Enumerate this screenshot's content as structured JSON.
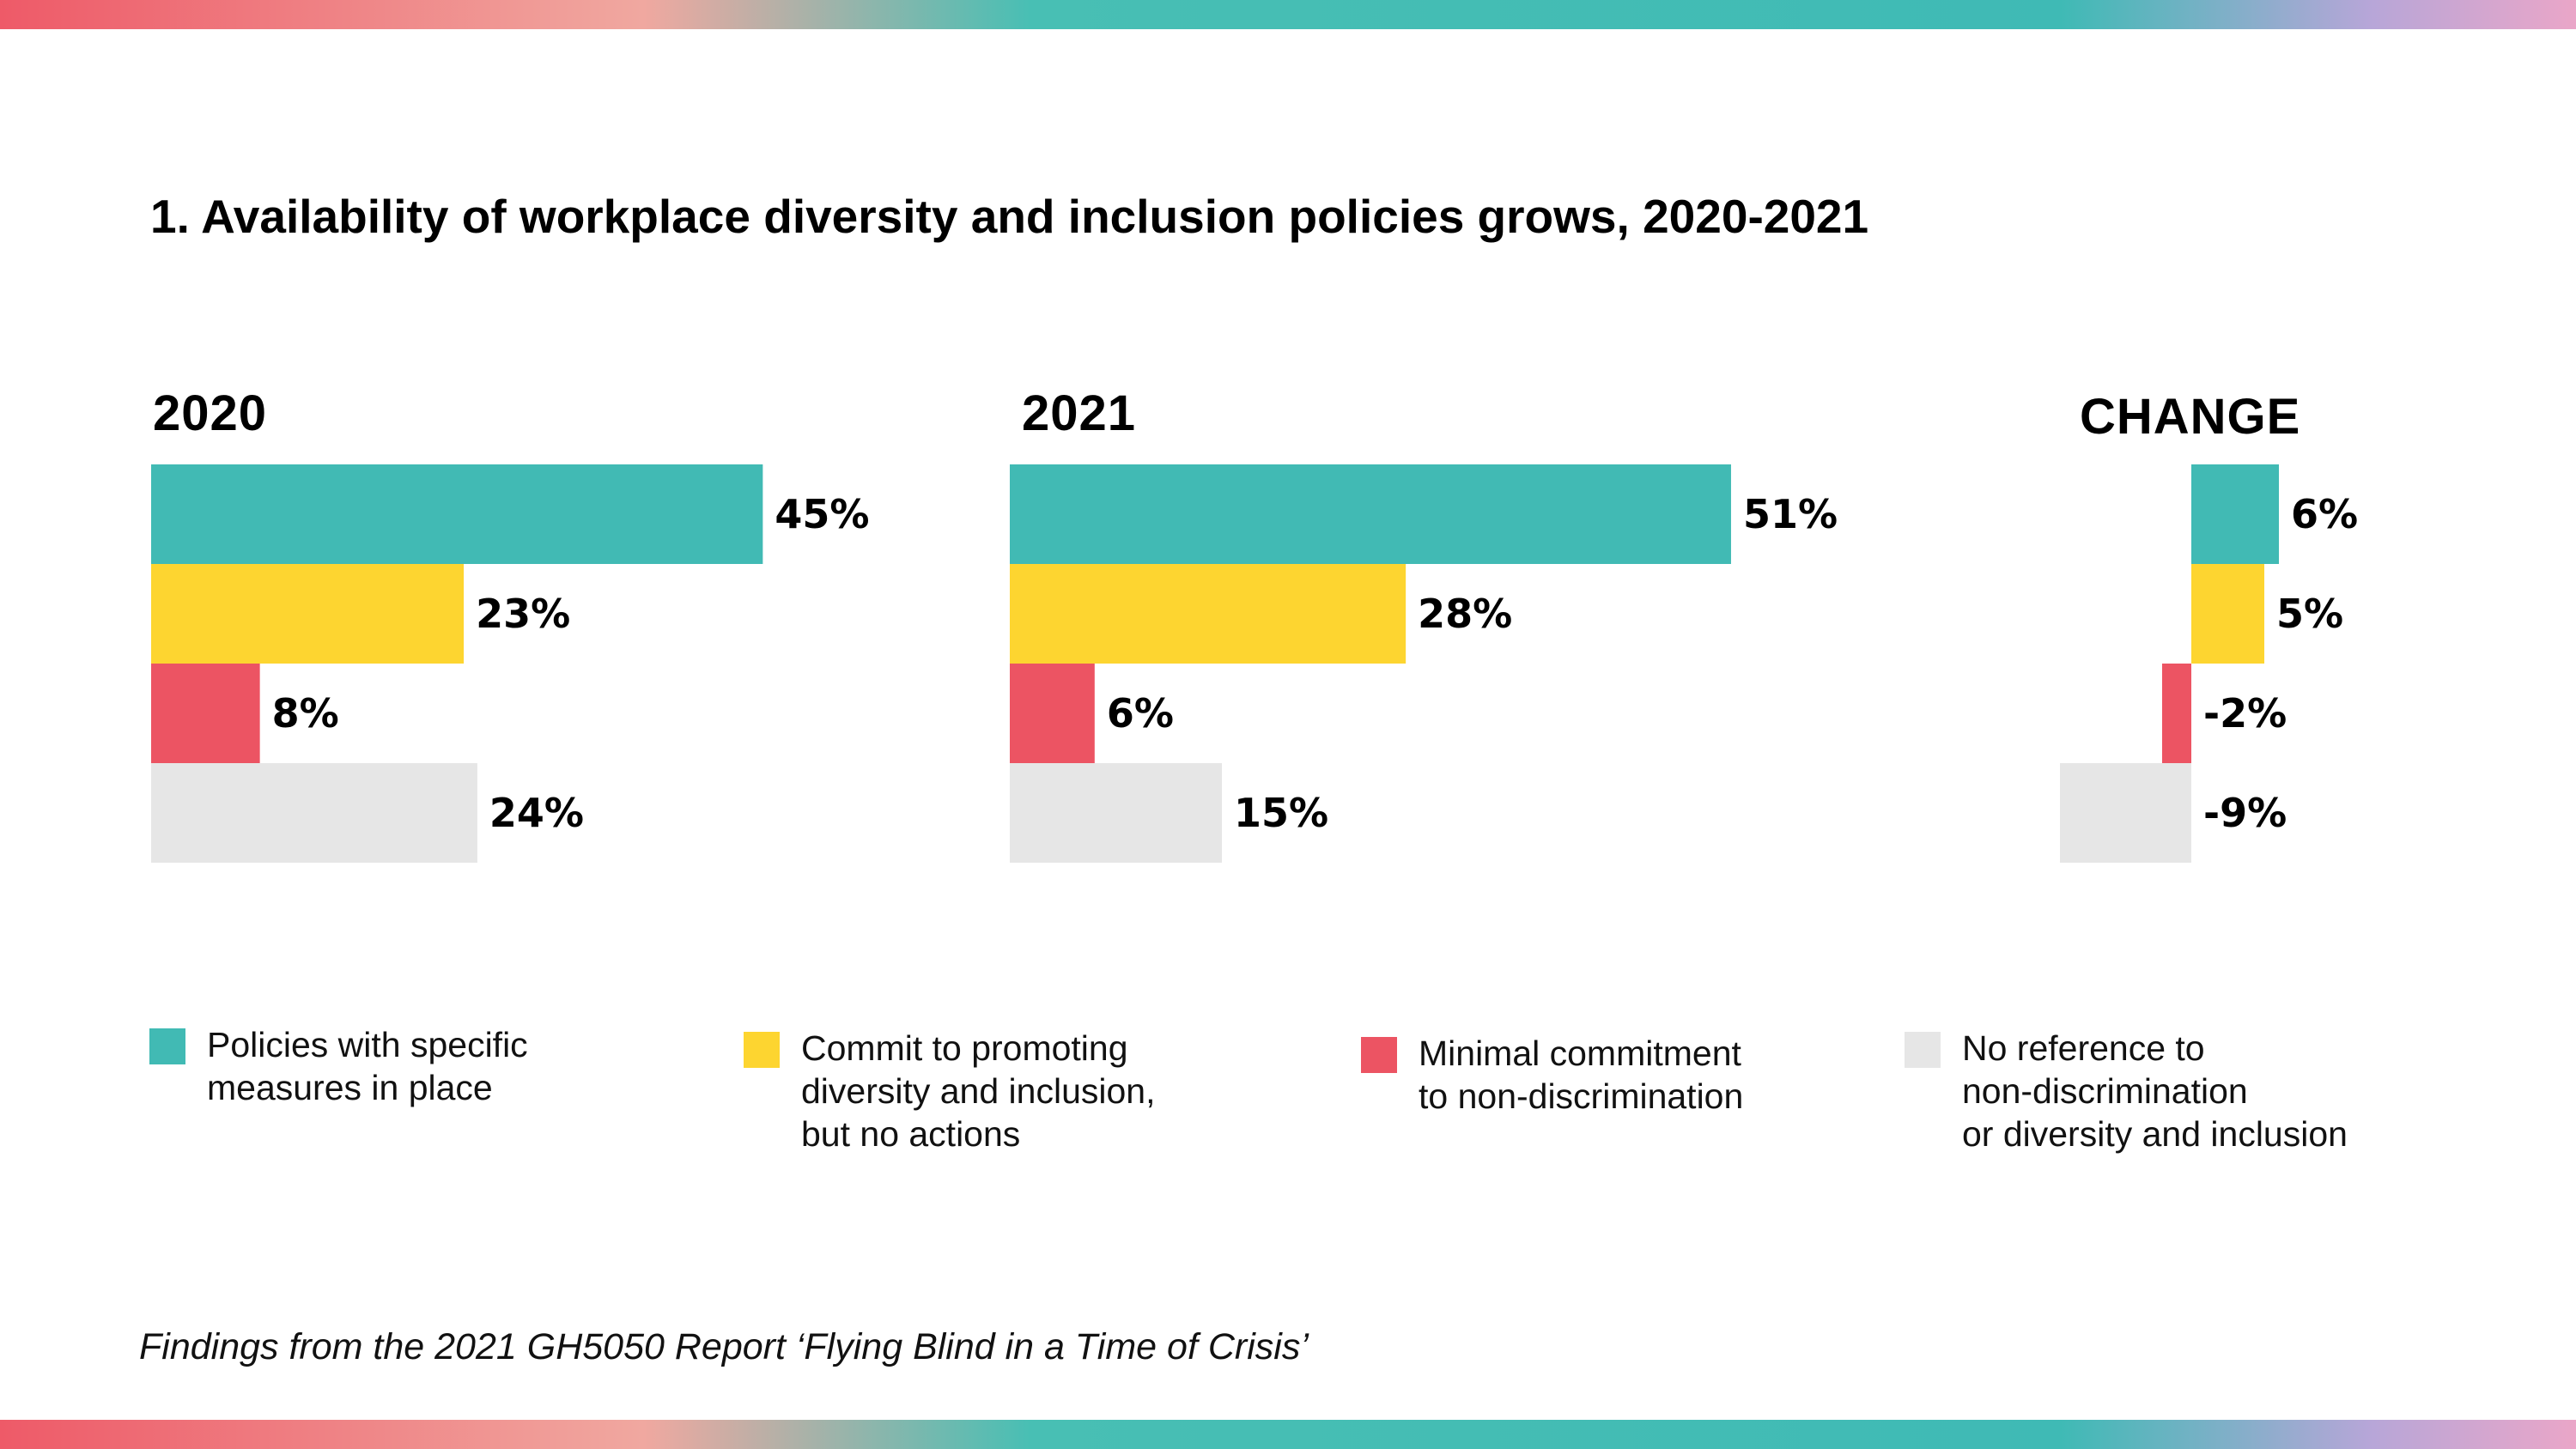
{
  "title": "1. Availability of workplace diversity and inclusion policies grows, 2020-2021",
  "footer": "Findings from the 2021 GH5050 Report ‘Flying Blind in a Time of Crisis’",
  "colors": {
    "policies": "#41bab4",
    "commit": "#fdd530",
    "minimal": "#ec5463",
    "none": "#e6e6e6"
  },
  "legend": [
    {
      "key": "policies",
      "label": "Policies with specific\nmeasures in place"
    },
    {
      "key": "commit",
      "label": "Commit to promoting\ndiversity and inclusion,\nbut no actions"
    },
    {
      "key": "minimal",
      "label": "Minimal commitment\nto non-discrimination"
    },
    {
      "key": "none",
      "label": "No reference to\nnon-discrimination\nor diversity and inclusion"
    }
  ],
  "chart_data": [
    {
      "type": "bar",
      "orientation": "horizontal",
      "title": "2020",
      "categories": [
        "Policies with specific measures in place",
        "Commit to promoting diversity and inclusion, but no actions",
        "Minimal commitment to non-discrimination",
        "No reference to non-discrimination or diversity and inclusion"
      ],
      "series_keys": [
        "policies",
        "commit",
        "minimal",
        "none"
      ],
      "values": [
        45,
        23,
        8,
        24
      ],
      "data_labels": [
        "45%",
        "23%",
        "8%",
        "24%"
      ]
    },
    {
      "type": "bar",
      "orientation": "horizontal",
      "title": "2021",
      "categories": [
        "Policies with specific measures in place",
        "Commit to promoting diversity and inclusion, but no actions",
        "Minimal commitment to non-discrimination",
        "No reference to non-discrimination or diversity and inclusion"
      ],
      "series_keys": [
        "policies",
        "commit",
        "minimal",
        "none"
      ],
      "values": [
        51,
        28,
        6,
        15
      ],
      "data_labels": [
        "51%",
        "28%",
        "6%",
        "15%"
      ]
    },
    {
      "type": "bar",
      "orientation": "horizontal",
      "title": "CHANGE",
      "categories": [
        "Policies with specific measures in place",
        "Commit to promoting diversity and inclusion, but no actions",
        "Minimal commitment to non-discrimination",
        "No reference to non-discrimination or diversity and inclusion"
      ],
      "series_keys": [
        "policies",
        "commit",
        "minimal",
        "none"
      ],
      "values": [
        6,
        5,
        -2,
        -9
      ],
      "data_labels": [
        "6%",
        "5%",
        "-2%",
        "-9%"
      ]
    }
  ]
}
